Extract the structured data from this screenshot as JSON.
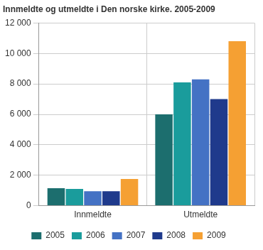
{
  "chart_data": {
    "type": "bar",
    "title": "Innmeldte og utmeldte i Den norske kirke. 2005-2009",
    "categories": [
      "Innmeldte",
      "Utmeldte"
    ],
    "series": [
      {
        "name": "2005",
        "color": "#1c6e6e",
        "values": [
          1150,
          6000
        ]
      },
      {
        "name": "2006",
        "color": "#1a9c9c",
        "values": [
          1100,
          8100
        ]
      },
      {
        "name": "2007",
        "color": "#4472c4",
        "values": [
          950,
          8300
        ]
      },
      {
        "name": "2008",
        "color": "#1f3a8c",
        "values": [
          950,
          7000
        ]
      },
      {
        "name": "2009",
        "color": "#f5a033",
        "values": [
          1750,
          10800
        ]
      }
    ],
    "ylim": [
      0,
      12000
    ],
    "yticks": [
      0,
      {
        "value": 2000,
        "label": "2 000"
      },
      {
        "value": 4000,
        "label": "4 000"
      },
      {
        "value": 6000,
        "label": "6 000"
      },
      {
        "value": 8000,
        "label": "8 000"
      },
      {
        "value": 10000,
        "label": "10 000"
      },
      {
        "value": 12000,
        "label": "12 000"
      }
    ],
    "grid": true,
    "legend": "bottom"
  }
}
